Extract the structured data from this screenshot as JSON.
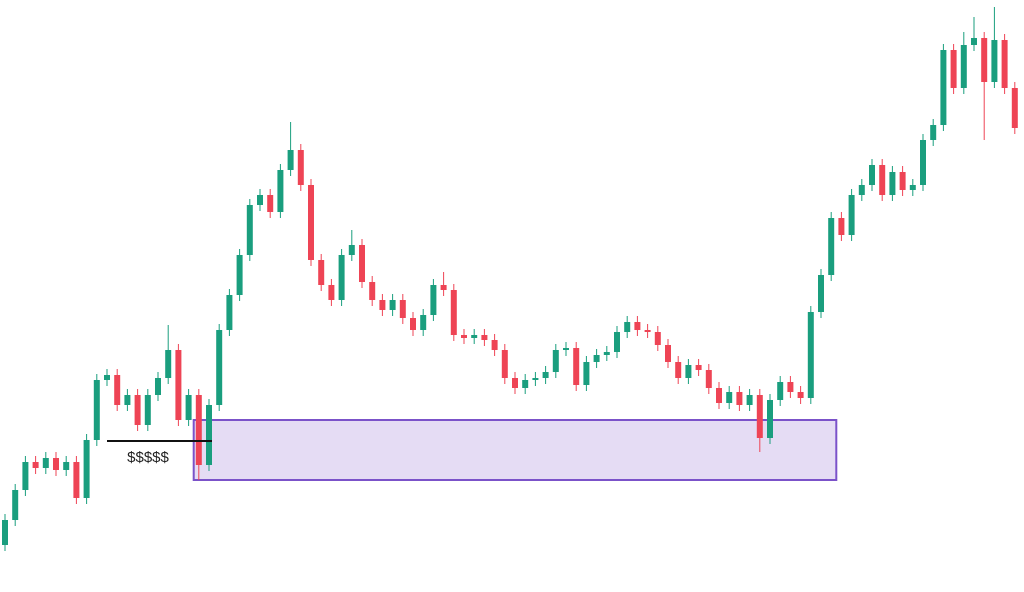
{
  "chart_data": {
    "type": "candlestick",
    "up_color": "#1a9e7e",
    "down_color": "#ee4455",
    "ylim": [
      0,
      592
    ],
    "open": [
      47,
      72,
      102,
      130,
      124,
      134,
      122,
      130,
      94,
      152,
      212,
      217,
      187,
      197,
      167,
      197,
      214,
      242,
      172,
      197,
      127,
      187,
      262,
      297,
      337,
      387,
      397,
      380,
      422,
      442,
      407,
      332,
      307,
      292,
      337,
      347,
      310,
      292,
      282,
      292,
      274,
      262,
      277,
      307,
      302,
      257,
      254,
      257,
      252,
      242,
      214,
      204,
      212,
      214,
      220,
      242,
      244,
      207,
      230,
      237,
      240,
      260,
      270,
      262,
      260,
      247,
      230,
      214,
      227,
      222,
      204,
      189,
      200,
      187,
      197,
      154,
      192,
      210,
      200,
      194,
      280,
      317,
      374,
      357,
      397,
      407,
      427,
      397,
      420,
      402,
      407,
      452,
      467,
      542,
      504,
      547,
      554,
      510,
      552,
      504
    ],
    "high": [
      78,
      108,
      136,
      136,
      140,
      140,
      136,
      136,
      158,
      218,
      223,
      223,
      203,
      203,
      203,
      220,
      267,
      248,
      203,
      203,
      193,
      268,
      303,
      343,
      393,
      403,
      403,
      428,
      470,
      448,
      413,
      338,
      313,
      343,
      362,
      353,
      316,
      298,
      298,
      298,
      280,
      283,
      313,
      320,
      308,
      263,
      263,
      263,
      258,
      248,
      220,
      218,
      220,
      226,
      248,
      250,
      250,
      236,
      243,
      246,
      266,
      276,
      276,
      268,
      266,
      253,
      236,
      233,
      233,
      228,
      210,
      206,
      206,
      203,
      203,
      198,
      216,
      216,
      206,
      286,
      323,
      380,
      380,
      403,
      413,
      433,
      433,
      426,
      426,
      413,
      458,
      473,
      548,
      548,
      560,
      575,
      560,
      585,
      558,
      510
    ],
    "low": [
      41,
      66,
      96,
      118,
      118,
      116,
      116,
      88,
      88,
      146,
      206,
      181,
      181,
      161,
      161,
      191,
      208,
      166,
      166,
      112,
      121,
      181,
      256,
      291,
      331,
      381,
      374,
      374,
      416,
      401,
      326,
      301,
      286,
      286,
      331,
      304,
      286,
      276,
      276,
      268,
      256,
      256,
      271,
      296,
      251,
      248,
      248,
      246,
      236,
      208,
      198,
      198,
      206,
      208,
      214,
      236,
      201,
      201,
      224,
      231,
      234,
      254,
      256,
      254,
      241,
      224,
      208,
      208,
      216,
      198,
      183,
      183,
      181,
      181,
      140,
      148,
      186,
      194,
      188,
      188,
      274,
      311,
      351,
      351,
      391,
      401,
      391,
      391,
      396,
      396,
      401,
      446,
      461,
      498,
      498,
      541,
      452,
      504,
      498,
      458
    ],
    "close": [
      72,
      102,
      130,
      124,
      134,
      122,
      130,
      94,
      152,
      212,
      217,
      187,
      197,
      167,
      197,
      214,
      242,
      172,
      197,
      127,
      187,
      262,
      297,
      337,
      387,
      397,
      380,
      422,
      442,
      407,
      332,
      307,
      292,
      337,
      347,
      310,
      292,
      282,
      292,
      274,
      262,
      277,
      307,
      302,
      257,
      254,
      257,
      252,
      242,
      214,
      204,
      212,
      214,
      220,
      242,
      244,
      207,
      230,
      237,
      240,
      260,
      270,
      262,
      260,
      247,
      230,
      214,
      227,
      222,
      204,
      189,
      200,
      187,
      197,
      154,
      192,
      210,
      200,
      194,
      280,
      317,
      374,
      357,
      397,
      407,
      427,
      397,
      420,
      402,
      407,
      452,
      467,
      542,
      504,
      547,
      554,
      510,
      552,
      504,
      464
    ],
    "zone": {
      "from": 19,
      "to": 81,
      "low": 112,
      "high": 172,
      "color": "#7b52c9"
    },
    "liquidity": {
      "label": "$$$$$",
      "level": 151,
      "from": 10,
      "to": 20
    }
  }
}
